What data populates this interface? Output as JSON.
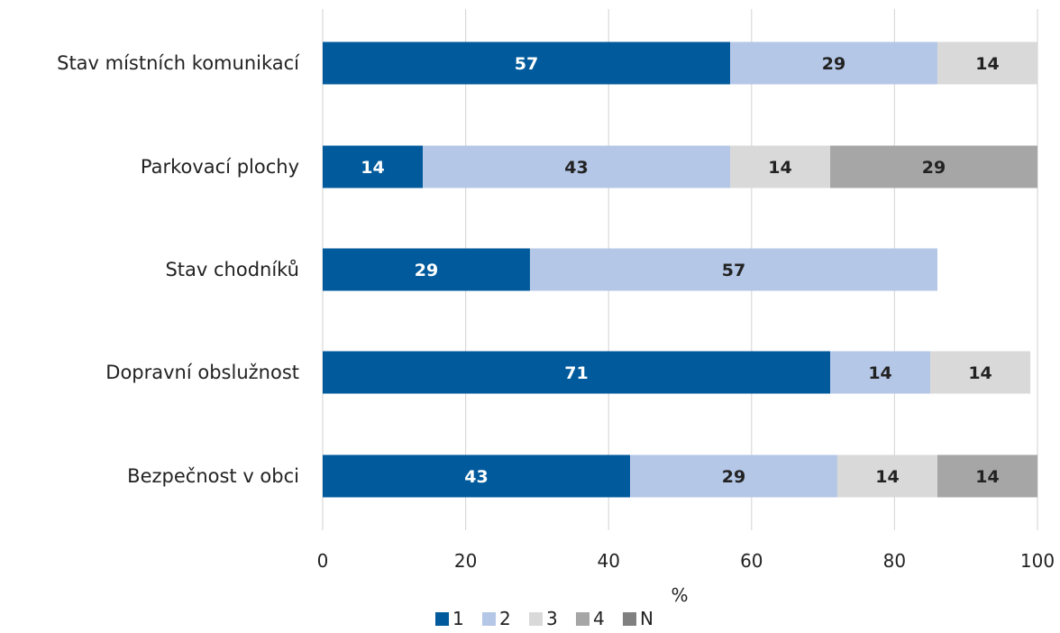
{
  "chart_data": {
    "type": "bar",
    "orientation": "horizontal",
    "stacked": true,
    "categories": [
      "Stav místních komunikací",
      "Parkovací plochy",
      "Stav chodníků",
      "Dopravní obslužnost",
      "Bezpečnost v obci"
    ],
    "series": [
      {
        "name": "1",
        "color": "#005a9c",
        "label_color": "#ffffff",
        "values": [
          57,
          14,
          29,
          71,
          43
        ]
      },
      {
        "name": "2",
        "color": "#b4c7e7",
        "label_color": "#222222",
        "values": [
          29,
          43,
          57,
          14,
          29
        ]
      },
      {
        "name": "3",
        "color": "#d9d9d9",
        "label_color": "#222222",
        "values": [
          14,
          14,
          0,
          14,
          14
        ]
      },
      {
        "name": "4",
        "color": "#a6a6a6",
        "label_color": "#222222",
        "values": [
          0,
          29,
          0,
          0,
          14
        ]
      },
      {
        "name": "N",
        "color": "#808080",
        "label_color": "#222222",
        "values": [
          0,
          0,
          0,
          0,
          0
        ]
      }
    ],
    "xlabel": "%",
    "ylabel": "",
    "xlim": [
      0,
      100
    ],
    "xticks": [
      "0",
      "20",
      "40",
      "60",
      "80",
      "100"
    ],
    "grid": true,
    "legend_position": "bottom"
  }
}
